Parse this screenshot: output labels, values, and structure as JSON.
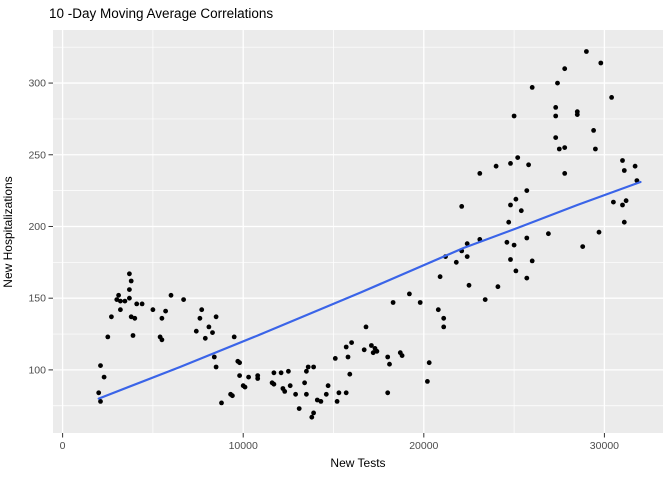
{
  "chart_data": {
    "type": "scatter",
    "title": "10 -Day Moving Average Correlations",
    "xlabel": "New Tests",
    "ylabel": "New Hospitalizations",
    "x_ticks": [
      0,
      10000,
      20000,
      30000
    ],
    "y_ticks": [
      100,
      150,
      200,
      250,
      300
    ],
    "x_minor": [
      5000,
      15000,
      25000
    ],
    "y_minor": [
      75,
      125,
      175,
      225,
      275,
      325
    ],
    "xlim": [
      -532,
      33244
    ],
    "ylim": [
      56,
      337
    ],
    "grid": true,
    "legend": "none",
    "colors": {
      "panel_bg": "#EBEBEB",
      "grid": "#FFFFFF",
      "point": "#000000",
      "trend": "#3A64E8",
      "tick_text": "#4D4D4D",
      "tick_mark": "#333333"
    },
    "points": [
      [
        2000,
        84
      ],
      [
        2100,
        78
      ],
      [
        2100,
        103
      ],
      [
        2300,
        95
      ],
      [
        2500,
        123
      ],
      [
        2700,
        137
      ],
      [
        3000,
        149
      ],
      [
        3100,
        152
      ],
      [
        3200,
        142
      ],
      [
        3200,
        148
      ],
      [
        3450,
        148
      ],
      [
        3700,
        150
      ],
      [
        3700,
        156
      ],
      [
        3700,
        167
      ],
      [
        3800,
        137
      ],
      [
        3800,
        162
      ],
      [
        3900,
        124
      ],
      [
        4000,
        136
      ],
      [
        4100,
        146
      ],
      [
        4400,
        146
      ],
      [
        5000,
        142
      ],
      [
        5400,
        123
      ],
      [
        5500,
        121
      ],
      [
        5500,
        136
      ],
      [
        5700,
        141
      ],
      [
        6000,
        152
      ],
      [
        6700,
        149
      ],
      [
        7400,
        127
      ],
      [
        7600,
        136
      ],
      [
        7700,
        142
      ],
      [
        7900,
        122
      ],
      [
        8100,
        130
      ],
      [
        8300,
        126
      ],
      [
        8400,
        109
      ],
      [
        8500,
        102
      ],
      [
        8500,
        137
      ],
      [
        8800,
        77
      ],
      [
        9300,
        83
      ],
      [
        9400,
        82
      ],
      [
        9500,
        123
      ],
      [
        9700,
        106
      ],
      [
        9800,
        96
      ],
      [
        9800,
        105
      ],
      [
        10000,
        89
      ],
      [
        10100,
        88
      ],
      [
        10300,
        95
      ],
      [
        10800,
        94
      ],
      [
        10800,
        96
      ],
      [
        11600,
        91
      ],
      [
        11700,
        90
      ],
      [
        11700,
        98
      ],
      [
        12100,
        98
      ],
      [
        12200,
        87
      ],
      [
        12300,
        85
      ],
      [
        12500,
        99
      ],
      [
        12600,
        89
      ],
      [
        12900,
        83
      ],
      [
        13100,
        73
      ],
      [
        13400,
        91
      ],
      [
        13500,
        83
      ],
      [
        13500,
        99
      ],
      [
        13600,
        102
      ],
      [
        13800,
        67
      ],
      [
        13900,
        70
      ],
      [
        13900,
        102
      ],
      [
        14100,
        79
      ],
      [
        14300,
        78
      ],
      [
        14600,
        83
      ],
      [
        14700,
        89
      ],
      [
        15100,
        108
      ],
      [
        15200,
        78
      ],
      [
        15300,
        84
      ],
      [
        15700,
        84
      ],
      [
        15700,
        116
      ],
      [
        15800,
        109
      ],
      [
        15900,
        97
      ],
      [
        16000,
        119
      ],
      [
        16700,
        114
      ],
      [
        16800,
        130
      ],
      [
        17100,
        117
      ],
      [
        17200,
        112
      ],
      [
        17300,
        115
      ],
      [
        17400,
        113
      ],
      [
        18000,
        84
      ],
      [
        18000,
        109
      ],
      [
        18100,
        104
      ],
      [
        18300,
        147
      ],
      [
        18700,
        112
      ],
      [
        18800,
        110
      ],
      [
        19200,
        153
      ],
      [
        19800,
        147
      ],
      [
        20200,
        92
      ],
      [
        20300,
        105
      ],
      [
        20800,
        142
      ],
      [
        20900,
        165
      ],
      [
        21100,
        130
      ],
      [
        21100,
        136
      ],
      [
        21200,
        179
      ],
      [
        21800,
        175
      ],
      [
        22100,
        183
      ],
      [
        22100,
        214
      ],
      [
        22400,
        179
      ],
      [
        22400,
        188
      ],
      [
        22500,
        159
      ],
      [
        23100,
        191
      ],
      [
        23100,
        237
      ],
      [
        23400,
        149
      ],
      [
        24000,
        242
      ],
      [
        24100,
        158
      ],
      [
        24600,
        189
      ],
      [
        24700,
        203
      ],
      [
        24800,
        177
      ],
      [
        24800,
        215
      ],
      [
        24800,
        244
      ],
      [
        25000,
        187
      ],
      [
        25000,
        277
      ],
      [
        25100,
        169
      ],
      [
        25100,
        219
      ],
      [
        25200,
        248
      ],
      [
        25400,
        211
      ],
      [
        25700,
        164
      ],
      [
        25700,
        192
      ],
      [
        25700,
        225
      ],
      [
        25800,
        243
      ],
      [
        26000,
        176
      ],
      [
        26000,
        297
      ],
      [
        26900,
        195
      ],
      [
        27300,
        262
      ],
      [
        27300,
        277
      ],
      [
        27300,
        283
      ],
      [
        27400,
        300
      ],
      [
        27500,
        254
      ],
      [
        27800,
        237
      ],
      [
        27800,
        255
      ],
      [
        27800,
        310
      ],
      [
        28500,
        278
      ],
      [
        28500,
        280
      ],
      [
        28800,
        186
      ],
      [
        29000,
        322
      ],
      [
        29400,
        267
      ],
      [
        29500,
        254
      ],
      [
        29700,
        196
      ],
      [
        29800,
        314
      ],
      [
        30400,
        290
      ],
      [
        30500,
        217
      ],
      [
        31000,
        215
      ],
      [
        31000,
        246
      ],
      [
        31100,
        203
      ],
      [
        31100,
        239
      ],
      [
        31200,
        218
      ],
      [
        31700,
        242
      ],
      [
        31800,
        232
      ]
    ],
    "trend_line": [
      [
        2000,
        80
      ],
      [
        6500,
        102
      ],
      [
        10800,
        124
      ],
      [
        16500,
        154
      ],
      [
        22200,
        185
      ],
      [
        25200,
        199
      ],
      [
        28500,
        215
      ],
      [
        32000,
        231
      ]
    ]
  }
}
